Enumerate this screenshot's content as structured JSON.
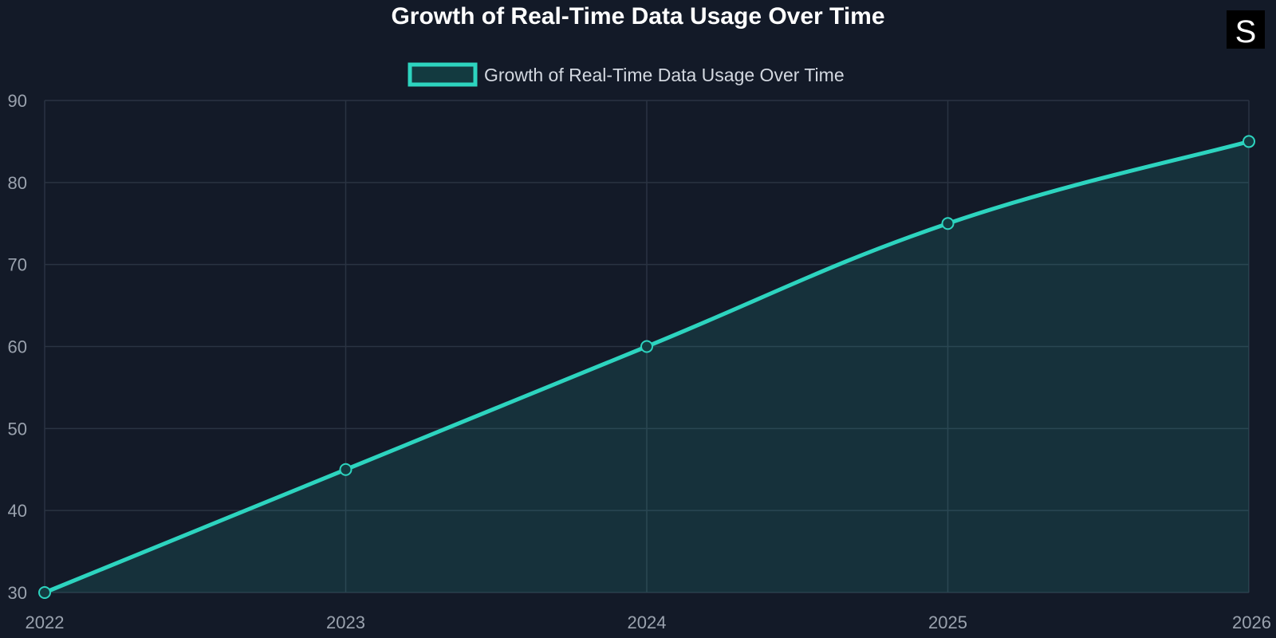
{
  "chart_data": {
    "type": "area",
    "title": "Growth of Real-Time Data Usage Over Time",
    "x": [
      "2022",
      "2023",
      "2024",
      "2025",
      "2026"
    ],
    "series": [
      {
        "name": "Growth of Real-Time Data Usage Over Time",
        "values": [
          30,
          45,
          60,
          75,
          85
        ]
      }
    ],
    "xlabel": "",
    "ylabel": "",
    "ylim": [
      30,
      90
    ],
    "yticks": [
      30,
      40,
      50,
      60,
      70,
      80,
      90
    ],
    "grid": true,
    "legend_position": "top-center"
  },
  "logo": {
    "letter": "S"
  },
  "colors": {
    "background": "#131a28",
    "line": "#2dd4bf",
    "fill": "#16333d",
    "grid": "#2a3342",
    "tick_text": "#9aa2ae",
    "title": "#ffffff",
    "legend_text": "#d3d8e0"
  }
}
